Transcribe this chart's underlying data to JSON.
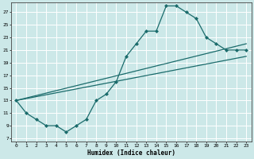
{
  "xlabel": "Humidex (Indice chaleur)",
  "bg_color": "#cce8e8",
  "grid_color": "#ffffff",
  "line_color": "#1a6b6b",
  "xticks": [
    0,
    1,
    2,
    3,
    4,
    5,
    6,
    7,
    8,
    9,
    10,
    11,
    12,
    13,
    14,
    15,
    16,
    17,
    18,
    19,
    20,
    21,
    22,
    23
  ],
  "yticks": [
    7,
    9,
    11,
    13,
    15,
    17,
    19,
    21,
    23,
    25,
    27
  ],
  "line1_x": [
    0,
    1,
    2,
    3,
    4,
    5,
    6,
    7,
    8,
    9,
    10,
    11,
    12,
    13,
    14,
    15,
    16,
    17,
    18,
    19,
    20,
    21,
    22,
    23
  ],
  "line1_y": [
    13,
    11,
    10,
    9,
    9,
    8,
    9,
    10,
    13,
    14,
    16,
    20,
    22,
    24,
    24,
    28,
    28,
    27,
    26,
    23,
    22,
    21,
    21,
    21
  ],
  "line2_x": [
    0,
    23
  ],
  "line2_y": [
    13,
    22
  ],
  "line3_x": [
    0,
    23
  ],
  "line3_y": [
    13,
    20
  ]
}
